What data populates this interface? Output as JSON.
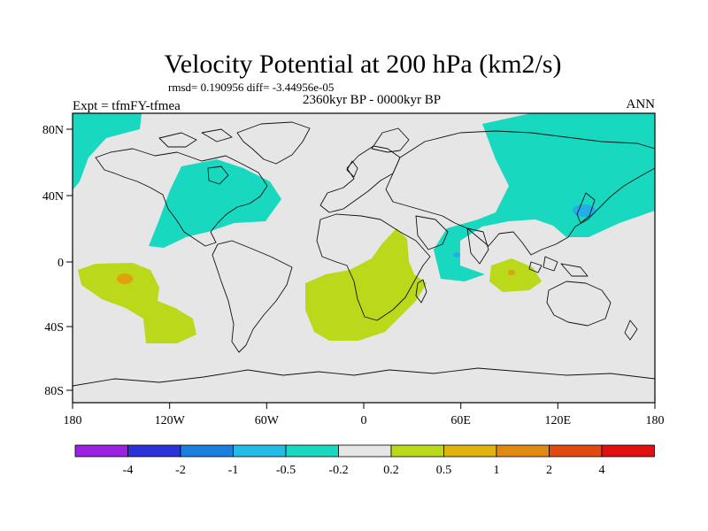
{
  "title": "Velocity Potential at 200 hPa (km2/s)",
  "stats": "rmsd= 0.190956 diff= -3.44956e-05",
  "experiment": "Expt = tfmFY-tfmea",
  "period": "2360kyr BP - 0000kyr BP",
  "season": "ANN",
  "lat_labels": [
    "80N",
    "40N",
    "0",
    "40S",
    "80S"
  ],
  "lon_labels": [
    "180",
    "120W",
    "60W",
    "0",
    "60E",
    "120E",
    "180"
  ],
  "colorbar": {
    "colors": [
      "#9a22e0",
      "#2b32d8",
      "#1a7fe0",
      "#22bce6",
      "#18d9c0",
      "#e6e6e6",
      "#bcd81a",
      "#e0b40e",
      "#e08a12",
      "#e04a10",
      "#e01010"
    ],
    "labels": [
      "-4",
      "-2",
      "-1",
      "-0.5",
      "-0.2",
      "0.2",
      "0.5",
      "1",
      "2",
      "4"
    ]
  },
  "colors": {
    "background": "#e6e6e6",
    "negative_fill": "#18d9c0",
    "positive_fill": "#bcd81a",
    "neg_strong": "#22aee8",
    "pos_strong": "#e0a010",
    "coast": "#111111"
  }
}
